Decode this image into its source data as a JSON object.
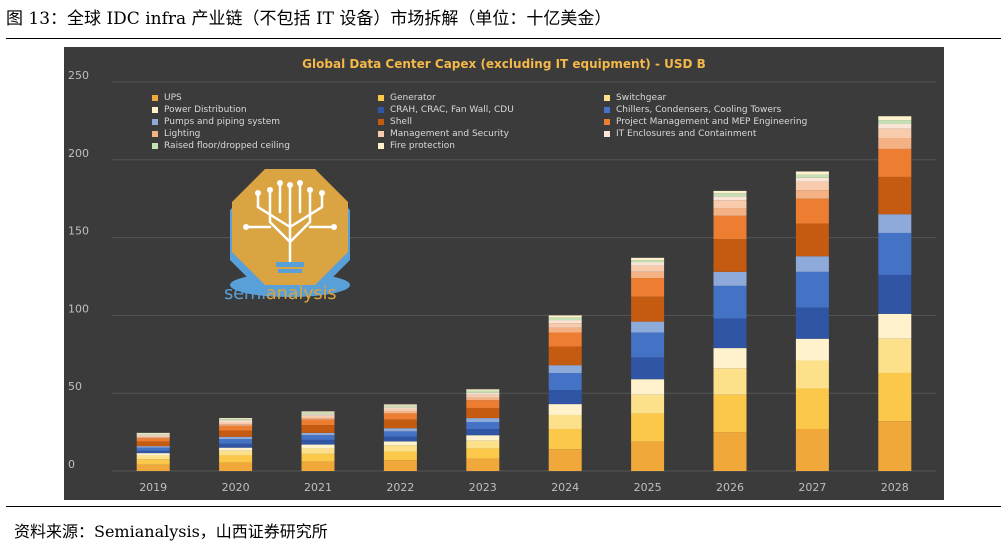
{
  "figure": {
    "title": "图 13：全球 IDC infra 产业链（不包括 IT 设备）市场拆解（单位：十亿美金）",
    "source": "资料来源：Semianalysis，山西证券研究所"
  },
  "logo": {
    "icon": "tree-circuit-icon",
    "text_part1": "semi",
    "text_part2": "analysis"
  },
  "colors": {
    "panel_bg": "#3b3b3b",
    "gridline": "#555555",
    "axis_text": "#bfbfbf",
    "title": "#f4b84a"
  },
  "chart_data": {
    "type": "bar",
    "stacked": true,
    "title": "Global Data Center Capex (excluding IT equipment) - USD B",
    "xlabel": "",
    "ylabel": "",
    "ylim": [
      0,
      250
    ],
    "yticks": [
      0,
      50,
      100,
      150,
      200,
      250
    ],
    "grid": true,
    "legend_position": "top-left",
    "categories": [
      "2019",
      "2020",
      "2021",
      "2022",
      "2023",
      "2024",
      "2025",
      "2026",
      "2027",
      "2028"
    ],
    "series": [
      {
        "name": "UPS",
        "color": "#f0a83a",
        "values": [
          4,
          5.5,
          6,
          7,
          8,
          14,
          19,
          25,
          27,
          32
        ]
      },
      {
        "name": "Generator",
        "color": "#fbc84a",
        "values": [
          3.5,
          4.5,
          5,
          5.5,
          6.5,
          13,
          18,
          24,
          26,
          31
        ]
      },
      {
        "name": "Switchgear",
        "color": "#fde08a",
        "values": [
          2.5,
          3,
          3.5,
          4,
          5,
          9,
          12,
          17,
          18,
          22
        ]
      },
      {
        "name": "Power Distribution",
        "color": "#fff2cc",
        "values": [
          1.5,
          2,
          2.5,
          2.5,
          3.5,
          7,
          10,
          13,
          14,
          16
        ]
      },
      {
        "name": "CRAH, CRAC, Fan Wall, CDU",
        "color": "#2f55a4",
        "values": [
          1.5,
          2.5,
          3,
          3,
          4,
          9,
          14,
          19,
          20,
          25
        ]
      },
      {
        "name": "Chillers, Condensers, Cooling Towers",
        "color": "#4472c4",
        "values": [
          2,
          3,
          3,
          3.5,
          4.5,
          11,
          16,
          21,
          23,
          27
        ]
      },
      {
        "name": "Pumps and piping system",
        "color": "#8eaadb",
        "values": [
          1,
          1.5,
          1.5,
          2,
          2.5,
          5,
          7,
          9,
          10,
          12
        ]
      },
      {
        "name": "Shell",
        "color": "#c55a11",
        "values": [
          3,
          4,
          5,
          5.5,
          6.5,
          12,
          16,
          21,
          21,
          24
        ]
      },
      {
        "name": "Project Management and MEP Engineering",
        "color": "#ed7d31",
        "values": [
          2,
          3,
          3.5,
          4,
          5,
          9,
          12,
          15,
          16,
          18
        ]
      },
      {
        "name": "Lighting",
        "color": "#f4b183",
        "values": [
          0.7,
          1,
          1,
          1.2,
          1.5,
          3,
          4,
          5,
          5.5,
          7
        ]
      },
      {
        "name": "Management and Security",
        "color": "#f8cbad",
        "values": [
          1,
          1.5,
          1.5,
          1.7,
          2,
          3,
          4,
          5,
          5.5,
          6
        ]
      },
      {
        "name": "IT Enclosures and Containment",
        "color": "#fbe5d6",
        "values": [
          0.8,
          1,
          1,
          1,
          1.3,
          2,
          2,
          2.5,
          2.5,
          3
        ]
      },
      {
        "name": "Raised floor/dropped ceiling",
        "color": "#c5e0b4",
        "values": [
          0.6,
          0.8,
          1,
          1,
          1.2,
          1.5,
          1.5,
          2,
          2,
          2.5
        ]
      },
      {
        "name": "Fire protection",
        "color": "#fff2cc",
        "values": [
          0.4,
          0.7,
          0.8,
          0.9,
          1,
          1.5,
          1.5,
          1.5,
          2,
          2.5
        ]
      }
    ],
    "legend_order": [
      "UPS",
      "Generator",
      "Switchgear",
      "Power Distribution",
      "CRAH, CRAC, Fan Wall, CDU",
      "Chillers, Condensers, Cooling Towers",
      "Pumps and piping system",
      "Shell",
      "Project Management and MEP Engineering",
      "Lighting",
      "Management and Security",
      "IT Enclosures and Containment",
      "Raised floor/dropped ceiling",
      "Fire protection"
    ]
  }
}
